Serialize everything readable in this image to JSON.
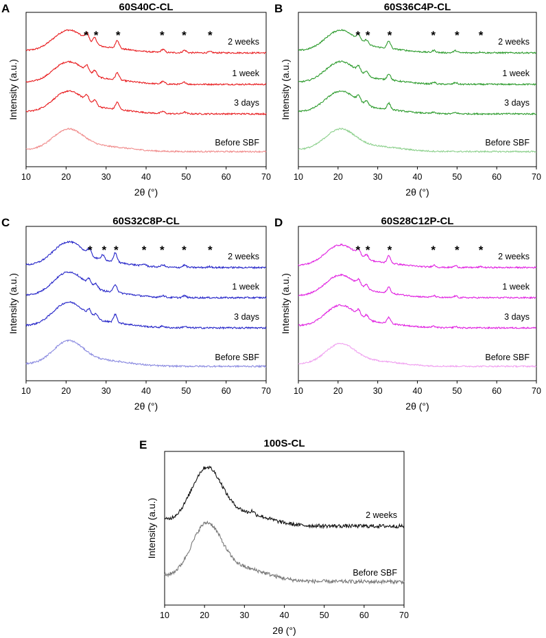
{
  "chart_data": [
    {
      "panel": "A",
      "type": "line",
      "title": "60S40C-CL",
      "xlabel": "2θ (°)",
      "ylabel": "Intensity (a.u.)",
      "xlim": [
        10,
        70
      ],
      "xticks": [
        "10",
        "20",
        "30",
        "40",
        "50",
        "60",
        "70"
      ],
      "star_positions_2theta": [
        25,
        27.5,
        33,
        44,
        49.5,
        56
      ],
      "series": [
        {
          "name": "2 weeks",
          "color": "#e8191c",
          "offset": 3,
          "peaks": [
            [
              20.5,
              1.0
            ],
            [
              25.2,
              0.35
            ],
            [
              27.2,
              0.3
            ],
            [
              32.8,
              0.4
            ],
            [
              44.2,
              0.15
            ],
            [
              49.6,
              0.12
            ],
            [
              56,
              0.05
            ]
          ]
        },
        {
          "name": "1 week",
          "color": "#e8191c",
          "offset": 2,
          "peaks": [
            [
              20.5,
              1.0
            ],
            [
              25.2,
              0.3
            ],
            [
              27.2,
              0.25
            ],
            [
              32.8,
              0.35
            ],
            [
              44.2,
              0.12
            ],
            [
              49.6,
              0.1
            ]
          ]
        },
        {
          "name": "3 days",
          "color": "#e8191c",
          "offset": 1,
          "peaks": [
            [
              20.5,
              1.0
            ],
            [
              25.2,
              0.3
            ],
            [
              27.2,
              0.25
            ],
            [
              32.8,
              0.35
            ],
            [
              44.2,
              0.1
            ],
            [
              49.6,
              0.08
            ]
          ]
        },
        {
          "name": "Before SBF",
          "color": "#f08a8a",
          "offset": 0,
          "peaks": [
            [
              20.5,
              1.0
            ]
          ]
        }
      ]
    },
    {
      "panel": "B",
      "type": "line",
      "title": "60S36C4P-CL",
      "xlabel": "2θ (°)",
      "ylabel": "Intensity (a.u.)",
      "xlim": [
        10,
        70
      ],
      "xticks": [
        "10",
        "20",
        "30",
        "40",
        "50",
        "60",
        "70"
      ],
      "star_positions_2theta": [
        25,
        27.5,
        33,
        44,
        50,
        56
      ],
      "series": [
        {
          "name": "2 weeks",
          "color": "#2a9a2a",
          "offset": 3,
          "peaks": [
            [
              20.5,
              1.0
            ],
            [
              25.2,
              0.25
            ],
            [
              27.2,
              0.2
            ],
            [
              32.8,
              0.35
            ],
            [
              44.2,
              0.1
            ],
            [
              49.6,
              0.1
            ],
            [
              56,
              0.04
            ]
          ]
        },
        {
          "name": "1 week",
          "color": "#2a9a2a",
          "offset": 2,
          "peaks": [
            [
              20.5,
              1.0
            ],
            [
              25.2,
              0.25
            ],
            [
              27.2,
              0.2
            ],
            [
              32.8,
              0.3
            ],
            [
              44.2,
              0.08
            ],
            [
              49.6,
              0.08
            ]
          ]
        },
        {
          "name": "3 days",
          "color": "#2a9a2a",
          "offset": 1,
          "peaks": [
            [
              20.5,
              1.0
            ],
            [
              25.2,
              0.25
            ],
            [
              27.2,
              0.2
            ],
            [
              32.8,
              0.3
            ],
            [
              44.2,
              0.06
            ],
            [
              49.6,
              0.06
            ]
          ]
        },
        {
          "name": "Before SBF",
          "color": "#8cd08c",
          "offset": 0,
          "peaks": [
            [
              20.5,
              1.0
            ]
          ]
        }
      ]
    },
    {
      "panel": "C",
      "type": "line",
      "title": "60S32C8P-CL",
      "xlabel": "2θ (°)",
      "ylabel": "Intensity (a.u.)",
      "xlim": [
        10,
        70
      ],
      "xticks": [
        "10",
        "20",
        "30",
        "40",
        "50",
        "60",
        "70"
      ],
      "star_positions_2theta": [
        26,
        29.5,
        32.5,
        39.5,
        44,
        49.5,
        56
      ],
      "series": [
        {
          "name": "2 weeks",
          "color": "#2424c8",
          "offset": 3,
          "peaks": [
            [
              20.5,
              1.0
            ],
            [
              25.8,
              0.25
            ],
            [
              29.2,
              0.25
            ],
            [
              32.3,
              0.4
            ],
            [
              39.5,
              0.08
            ],
            [
              44.2,
              0.1
            ],
            [
              49.6,
              0.1
            ],
            [
              56,
              0.04
            ]
          ]
        },
        {
          "name": "1 week",
          "color": "#2424c8",
          "offset": 2,
          "peaks": [
            [
              20.5,
              1.0
            ],
            [
              25.8,
              0.25
            ],
            [
              27.5,
              0.2
            ],
            [
              32.3,
              0.35
            ],
            [
              44.2,
              0.08
            ],
            [
              49.6,
              0.08
            ]
          ]
        },
        {
          "name": "3 days",
          "color": "#2424c8",
          "offset": 1,
          "peaks": [
            [
              20.5,
              1.0
            ],
            [
              25.8,
              0.25
            ],
            [
              27.5,
              0.2
            ],
            [
              32.3,
              0.35
            ],
            [
              44.2,
              0.06
            ],
            [
              49.6,
              0.06
            ]
          ]
        },
        {
          "name": "Before SBF",
          "color": "#8a8ae0",
          "offset": 0,
          "peaks": [
            [
              20.5,
              1.0
            ]
          ]
        }
      ]
    },
    {
      "panel": "D",
      "type": "line",
      "title": "60S28C12P-CL",
      "xlabel": "2θ (°)",
      "ylabel": "Intensity (a.u.)",
      "xlim": [
        10,
        70
      ],
      "xticks": [
        "10",
        "20",
        "30",
        "40",
        "50",
        "60",
        "70"
      ],
      "star_positions_2theta": [
        25,
        27.5,
        33,
        44,
        50,
        56
      ],
      "series": [
        {
          "name": "2 weeks",
          "color": "#e020e0",
          "offset": 3,
          "peaks": [
            [
              20.5,
              1.0
            ],
            [
              25.2,
              0.25
            ],
            [
              27.2,
              0.2
            ],
            [
              32.8,
              0.35
            ],
            [
              44.2,
              0.1
            ],
            [
              49.6,
              0.08
            ],
            [
              56,
              0.04
            ]
          ]
        },
        {
          "name": "1 week",
          "color": "#e020e0",
          "offset": 2,
          "peaks": [
            [
              20.5,
              1.0
            ],
            [
              25.2,
              0.25
            ],
            [
              27.2,
              0.2
            ],
            [
              32.8,
              0.3
            ],
            [
              44.2,
              0.08
            ],
            [
              49.6,
              0.08
            ]
          ]
        },
        {
          "name": "3 days",
          "color": "#e020e0",
          "offset": 1,
          "peaks": [
            [
              20.5,
              1.0
            ],
            [
              25.2,
              0.25
            ],
            [
              27.2,
              0.2
            ],
            [
              32.8,
              0.3
            ],
            [
              44.2,
              0.06
            ],
            [
              49.6,
              0.06
            ]
          ]
        },
        {
          "name": "Before SBF",
          "color": "#f0a0f0",
          "offset": 0,
          "peaks": [
            [
              20.5,
              1.0
            ]
          ]
        }
      ]
    },
    {
      "panel": "E",
      "type": "line",
      "title": "100S-CL",
      "xlabel": "2θ (°)",
      "ylabel": "Intensity (a.u.)",
      "xlim": [
        10,
        70
      ],
      "xticks": [
        "10",
        "20",
        "30",
        "40",
        "50",
        "60",
        "70"
      ],
      "star_positions_2theta": [],
      "series": [
        {
          "name": "2 weeks",
          "color": "#111111",
          "offset": 1,
          "peaks": [
            [
              20.5,
              1.0
            ],
            [
              32,
              0.05
            ]
          ]
        },
        {
          "name": "Before SBF",
          "color": "#777777",
          "offset": 0,
          "peaks": [
            [
              20.5,
              1.0
            ]
          ]
        }
      ]
    }
  ]
}
